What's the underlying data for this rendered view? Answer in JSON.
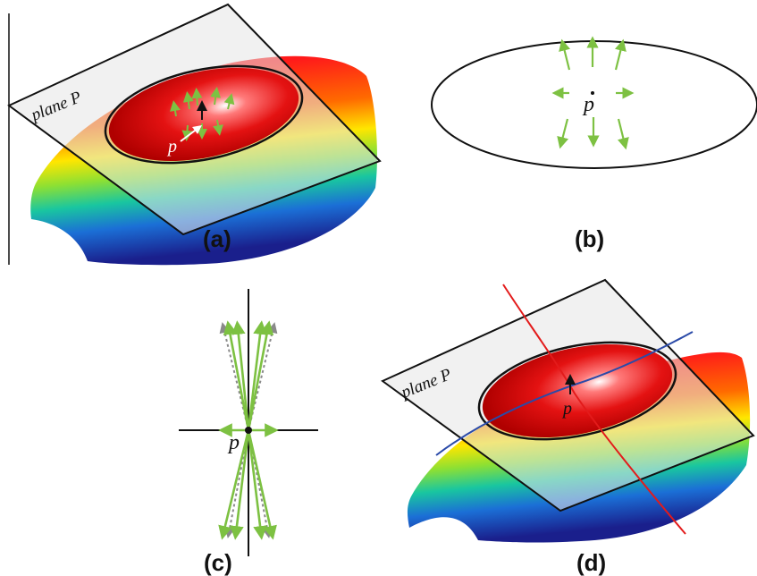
{
  "panels": [
    {
      "id": "a",
      "label": "(a)",
      "plane_label": "plane P",
      "point_label": "p"
    },
    {
      "id": "b",
      "label": "(b)",
      "point_label": "p"
    },
    {
      "id": "c",
      "label": "(c)",
      "point_label": "p"
    },
    {
      "id": "d",
      "label": "(d)",
      "plane_label": "plane P",
      "point_label": "p"
    }
  ],
  "colors": {
    "arrow_green": "#7dc142",
    "dotted_grey": "#8a8a8a",
    "curve_red": "#e31b1b",
    "curve_blue": "#2a4aa8",
    "outline": "#111111",
    "plane_fill": "#e6e6e6"
  }
}
